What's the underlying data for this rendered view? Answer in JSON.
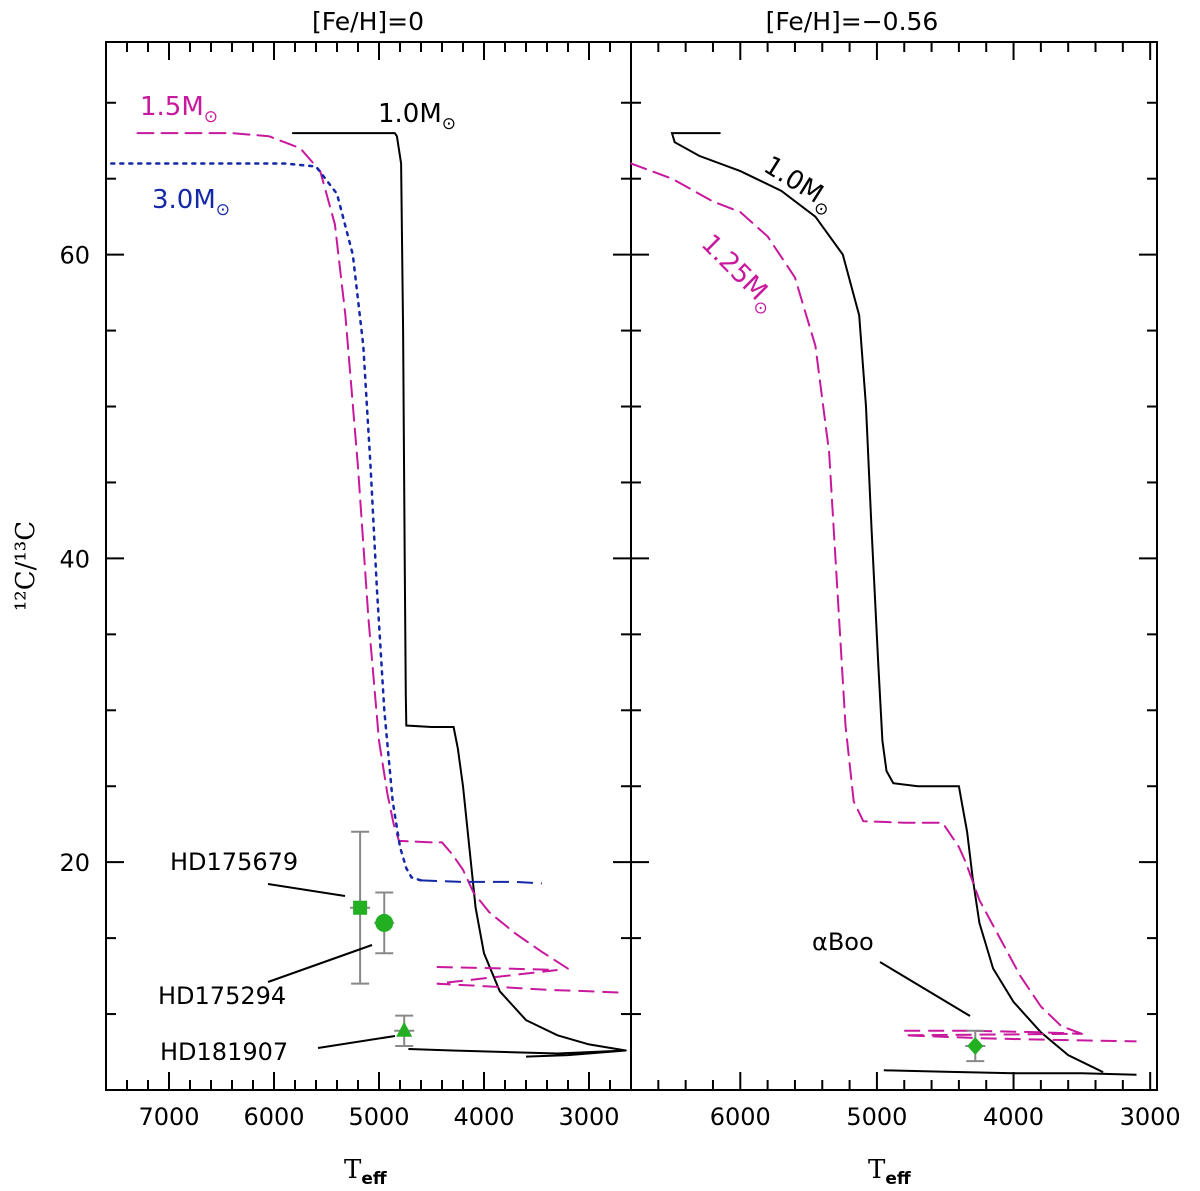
{
  "chart_data": [
    {
      "type": "line",
      "title": "[Fe/H]=0",
      "xlabel": "T",
      "xlabel_sub": "eff",
      "ylabel": "¹²C/¹³C",
      "xlim": [
        7600,
        2600
      ],
      "ylim": [
        5,
        74
      ],
      "x_ticks": [
        7000,
        6000,
        5000,
        4000,
        3000
      ],
      "y_ticks": [
        20,
        40,
        60
      ],
      "series": [
        {
          "name": "1.0M",
          "label_text": "1.0M",
          "label_suffix": "⊙",
          "color": "#000000",
          "style": "solid",
          "points": [
            [
              5820,
              68.0
            ],
            [
              4850,
              68.0
            ],
            [
              4830,
              67.8
            ],
            [
              4790,
              66.0
            ],
            [
              4770,
              55.0
            ],
            [
              4755,
              40.0
            ],
            [
              4745,
              31.0
            ],
            [
              4740,
              29.0
            ],
            [
              4500,
              28.9
            ],
            [
              4290,
              28.9
            ],
            [
              4250,
              27.5
            ],
            [
              4200,
              25.0
            ],
            [
              4140,
              21.0
            ],
            [
              4080,
              17.0
            ],
            [
              4000,
              14.0
            ],
            [
              3850,
              11.5
            ],
            [
              3600,
              9.6
            ],
            [
              3300,
              8.6
            ],
            [
              3000,
              8.0
            ],
            [
              2650,
              7.6
            ]
          ],
          "branch": [
            [
              4720,
              7.7
            ],
            [
              4300,
              7.6
            ],
            [
              3800,
              7.5
            ],
            [
              3300,
              7.4
            ],
            [
              2650,
              7.6
            ],
            [
              3200,
              7.3
            ],
            [
              3600,
              7.2
            ]
          ]
        },
        {
          "name": "1.5M",
          "label_text": "1.5M",
          "label_suffix": "⊙",
          "color": "#c8189e",
          "style": "dashed",
          "points": [
            [
              7300,
              68.0
            ],
            [
              6400,
              68.0
            ],
            [
              6050,
              67.8
            ],
            [
              5750,
              67.0
            ],
            [
              5560,
              65.5
            ],
            [
              5420,
              62.0
            ],
            [
              5320,
              56.0
            ],
            [
              5200,
              46.0
            ],
            [
              5100,
              36.0
            ],
            [
              5000,
              28.0
            ],
            [
              4920,
              24.5
            ],
            [
              4860,
              22.5
            ],
            [
              4810,
              21.4
            ],
            [
              4500,
              21.3
            ],
            [
              4400,
              21.3
            ],
            [
              4300,
              20.5
            ],
            [
              4200,
              19.5
            ],
            [
              4100,
              18.0
            ],
            [
              3950,
              16.7
            ],
            [
              3700,
              15.3
            ],
            [
              3450,
              14.1
            ],
            [
              3180,
              12.9
            ]
          ],
          "branch": [
            [
              4450,
              13.1
            ],
            [
              3800,
              13.0
            ],
            [
              3300,
              12.9
            ],
            [
              4450,
              12.0
            ],
            [
              3900,
              11.8
            ],
            [
              3400,
              11.6
            ],
            [
              3000,
              11.5
            ],
            [
              2650,
              11.4
            ]
          ]
        },
        {
          "name": "3.0M",
          "label_text": "3.0M",
          "label_suffix": "⊙",
          "color": "#1428a8",
          "style": "dotted",
          "points": [
            [
              7550,
              66.0
            ],
            [
              5900,
              66.0
            ],
            [
              5600,
              65.8
            ],
            [
              5400,
              64.0
            ],
            [
              5250,
              60.0
            ],
            [
              5150,
              54.0
            ],
            [
              5080,
              46.0
            ],
            [
              5020,
              38.0
            ],
            [
              4950,
              30.0
            ],
            [
              4870,
              24.0
            ],
            [
              4800,
              21.0
            ],
            [
              4740,
              19.6
            ],
            [
              4690,
              19.0
            ],
            [
              4600,
              18.8
            ]
          ],
          "branch": [
            [
              4600,
              18.8
            ],
            [
              4200,
              18.7
            ],
            [
              3700,
              18.7
            ],
            [
              3450,
              18.6
            ]
          ]
        }
      ],
      "stars": [
        {
          "name": "HD175679",
          "teff": 5180,
          "ratio": 17.0,
          "ratio_err": 5.0,
          "marker": "square"
        },
        {
          "name": "HD175294",
          "teff": 4950,
          "ratio": 16.0,
          "ratio_err": 2.0,
          "marker": "circle"
        },
        {
          "name": "HD181907",
          "teff": 4760,
          "ratio": 8.9,
          "ratio_err": 1.0,
          "marker": "triangle"
        }
      ]
    },
    {
      "type": "line",
      "title": "[Fe/H]=−0.56",
      "xlabel": "T",
      "xlabel_sub": "eff",
      "xlim": [
        6800,
        2950
      ],
      "ylim": [
        5,
        74
      ],
      "x_ticks": [
        6000,
        5000,
        4000,
        3000
      ],
      "y_ticks": [
        20,
        40,
        60
      ],
      "series": [
        {
          "name": "1.0M",
          "label_text": "1.0M",
          "label_suffix": "⊙",
          "color": "#000000",
          "style": "solid",
          "points": [
            [
              6150,
              68.0
            ],
            [
              6500,
              68.0
            ],
            [
              6480,
              67.4
            ],
            [
              6300,
              66.5
            ],
            [
              6000,
              65.5
            ],
            [
              5700,
              64.2
            ],
            [
              5450,
              62.5
            ],
            [
              5250,
              60.0
            ],
            [
              5130,
              56.0
            ],
            [
              5080,
              50.0
            ],
            [
              5040,
              42.0
            ],
            [
              4990,
              33.0
            ],
            [
              4960,
              28.0
            ],
            [
              4930,
              26.0
            ],
            [
              4880,
              25.2
            ],
            [
              4700,
              25.0
            ],
            [
              4400,
              25.0
            ],
            [
              4380,
              24.0
            ],
            [
              4340,
              22.0
            ],
            [
              4300,
              19.0
            ],
            [
              4250,
              16.0
            ],
            [
              4150,
              13.0
            ],
            [
              4000,
              10.8
            ],
            [
              3800,
              8.8
            ],
            [
              3600,
              7.3
            ],
            [
              3350,
              6.2
            ]
          ],
          "branch": [
            [
              4950,
              6.3
            ],
            [
              4500,
              6.2
            ],
            [
              4000,
              6.1
            ],
            [
              3500,
              6.1
            ],
            [
              3100,
              6.0
            ]
          ]
        },
        {
          "name": "1.25M",
          "label_text": "1.25M",
          "label_suffix": "⊙",
          "color": "#c8189e",
          "style": "dashed",
          "points": [
            [
              6800,
              66.0
            ],
            [
              6500,
              65.0
            ],
            [
              6200,
              63.5
            ],
            [
              6000,
              62.8
            ],
            [
              5800,
              61.2
            ],
            [
              5600,
              58.5
            ],
            [
              5450,
              54.0
            ],
            [
              5350,
              47.0
            ],
            [
              5290,
              38.0
            ],
            [
              5230,
              29.0
            ],
            [
              5170,
              24.0
            ],
            [
              5100,
              22.7
            ],
            [
              4800,
              22.6
            ],
            [
              4520,
              22.6
            ],
            [
              4400,
              21.0
            ],
            [
              4350,
              20.0
            ],
            [
              4250,
              17.5
            ],
            [
              4100,
              15.0
            ],
            [
              3950,
              12.5
            ],
            [
              3800,
              10.5
            ],
            [
              3650,
              9.2
            ],
            [
              3500,
              8.7
            ]
          ],
          "branch": [
            [
              4800,
              8.9
            ],
            [
              4300,
              8.9
            ],
            [
              3800,
              8.8
            ],
            [
              3500,
              8.7
            ],
            [
              4800,
              8.6
            ],
            [
              4200,
              8.4
            ],
            [
              3700,
              8.3
            ],
            [
              3100,
              8.2
            ]
          ]
        }
      ],
      "stars": [
        {
          "name": "αBoo",
          "teff": 4280,
          "ratio": 7.9,
          "ratio_err": 1.0,
          "marker": "diamond"
        }
      ]
    }
  ]
}
